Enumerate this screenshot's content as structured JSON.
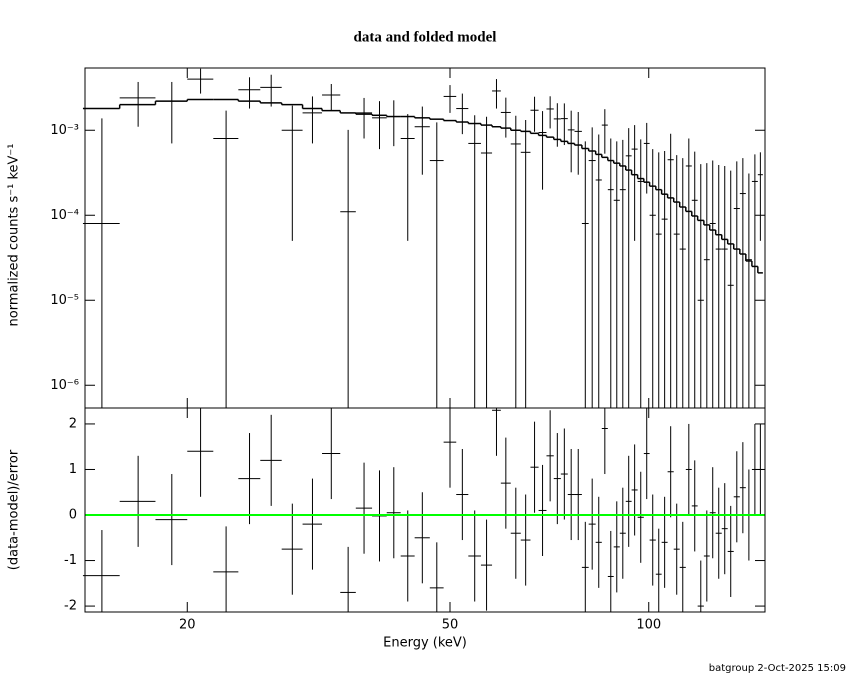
{
  "chart_data": [
    {
      "type": "errorbar",
      "title": "data and folded model",
      "ylabel": "normalized counts s⁻¹ keV⁻¹",
      "log_x": true,
      "log_y": true,
      "xlim": [
        14,
        150
      ],
      "ylim": [
        5.4e-07,
        0.0054
      ],
      "yticks": [
        {
          "value": 1e-06,
          "label": "10⁻⁶"
        },
        {
          "value": 1e-05,
          "label": "10⁻⁵"
        },
        {
          "value": 0.0001,
          "label": "10⁻⁴"
        },
        {
          "value": 0.001,
          "label": "10⁻³"
        }
      ],
      "color": "#000000",
      "model_color": "#000000",
      "x": [
        14.85,
        16.85,
        18.95,
        20.95,
        22.9,
        24.85,
        26.8,
        28.85,
        30.95,
        33.05,
        35.05,
        37.05,
        39.1,
        41.1,
        43.15,
        45.4,
        47.75,
        50,
        52.2,
        54.5,
        56.8,
        58.8,
        60.75,
        62.9,
        65.1,
        67.15,
        69.05,
        70.9,
        72.7,
        74.5,
        76.3,
        78.2,
        80.15,
        82.1,
        84.0,
        85.8,
        87.6,
        89.45,
        91.35,
        93.25,
        95.2,
        97.25,
        99.3,
        101.4,
        103.55,
        105.7,
        107.95,
        110.25,
        112.6,
        115.0,
        117.4,
        119.9,
        122.45,
        125.0,
        127.65,
        130.35,
        133.1,
        135.95,
        138.85,
        141.8,
        144.8,
        147.6
      ],
      "xerr": [
        0.95,
        1.05,
        1.05,
        0.95,
        1.0,
        0.95,
        1.0,
        1.05,
        1.05,
        1.05,
        0.95,
        1.05,
        1.0,
        1.0,
        1.05,
        1.2,
        1.15,
        1.1,
        1.1,
        1.2,
        1.1,
        0.9,
        1.05,
        1.1,
        1.1,
        0.95,
        0.95,
        0.9,
        0.9,
        0.9,
        0.9,
        1.0,
        0.95,
        1.0,
        0.9,
        0.9,
        0.9,
        0.95,
        0.95,
        0.95,
        1.0,
        1.05,
        1.0,
        1.1,
        1.05,
        1.1,
        1.15,
        1.15,
        1.2,
        1.2,
        1.2,
        1.3,
        1.25,
        1.3,
        1.35,
        1.35,
        1.4,
        1.45,
        1.45,
        1.5,
        1.5,
        1.3
      ],
      "values": [
        8e-05,
        0.0024,
        0.0022,
        0.004,
        0.0008,
        0.003,
        0.0032,
        0.001,
        0.0016,
        0.0026,
        0.00011,
        0.0016,
        0.0014,
        0.00145,
        0.0008,
        0.0011,
        0.00044,
        0.0025,
        0.0018,
        0.0007,
        0.00054,
        0.0029,
        0.00162,
        0.00069,
        0.00055,
        0.00172,
        0.00094,
        0.00178,
        0.00136,
        0.00137,
        0.00101,
        0.00097,
        8e-05,
        0.00044,
        0.00026,
        0.00115,
        0.0002,
        0.00015,
        0.0002,
        0.0005,
        0.0006,
        0.00025,
        0.0007,
        0.0001,
        6e-05,
        9e-05,
        0.00045,
        6e-05,
        4e-05,
        0.00038,
        0.00015,
        1e-05,
        3e-05,
        8e-05,
        4e-05,
        4e-05,
        1.5e-05,
        0.00012,
        0.00018,
        3e-05,
        0.00025,
        0.0003
      ],
      "yerr": [
        0.0013,
        0.0013,
        0.0015,
        0.0013,
        0.0009,
        0.0012,
        0.0013,
        0.00095,
        0.0009,
        0.0009,
        0.0009,
        0.0008,
        0.0008,
        0.0008,
        0.00075,
        0.0008,
        0.0008,
        0.0009,
        0.0009,
        0.0008,
        0.0009,
        0.0011,
        0.0008,
        0.00079,
        0.00077,
        0.00076,
        0.00074,
        0.00073,
        0.00072,
        0.0007,
        0.00069,
        0.00067,
        0.00066,
        0.00064,
        0.00063,
        0.00062,
        0.0006,
        0.00059,
        0.00057,
        0.00056,
        0.00055,
        0.00053,
        0.00052,
        0.0005,
        0.00049,
        0.00048,
        0.00046,
        0.00045,
        0.00043,
        0.00042,
        0.00041,
        0.00039,
        0.00038,
        0.00036,
        0.00035,
        0.00034,
        0.00032,
        0.00031,
        0.00029,
        0.00028,
        0.00027,
        0.00025
      ],
      "model": [
        0.0018,
        0.002,
        0.0022,
        0.0023,
        0.0023,
        0.0022,
        0.0021,
        0.002,
        0.0018,
        0.0017,
        0.0016,
        0.00155,
        0.0015,
        0.00145,
        0.00145,
        0.0014,
        0.00135,
        0.0013,
        0.00125,
        0.0012,
        0.00115,
        0.0011,
        0.00106,
        0.001,
        0.00097,
        0.00092,
        0.00087,
        0.00083,
        0.00078,
        0.00074,
        0.0007,
        0.00067,
        0.00061,
        0.00057,
        0.00052,
        0.00048,
        0.00044,
        0.00041,
        0.00038,
        0.00034,
        0.0003,
        0.00027,
        0.000245,
        0.00022,
        0.0002,
        0.000177,
        0.00016,
        0.000143,
        0.000125,
        0.000111,
        9.8e-05,
        8.7e-05,
        7.7e-05,
        6.7e-05,
        5.9e-05,
        5.2e-05,
        4.6e-05,
        4e-05,
        3.5e-05,
        2.9e-05,
        2.5e-05,
        2.1e-05
      ]
    },
    {
      "type": "residual",
      "ylabel": "(data-model)/error",
      "xlabel": "Energy (keV)",
      "log_x": true,
      "xlim": [
        14,
        150
      ],
      "xticks": [
        20,
        50,
        100
      ],
      "ylim": [
        -2.13,
        2.35
      ],
      "yticks": [
        -2,
        -1,
        0,
        1,
        2
      ],
      "color": "#000000",
      "hline": 0,
      "hline_color": "#00ff00",
      "values": [
        -1.33,
        0.3,
        -0.1,
        1.4,
        -1.25,
        0.8,
        1.2,
        -0.75,
        -0.2,
        1.35,
        -1.7,
        0.15,
        -0.02,
        0.05,
        -0.9,
        -0.5,
        -1.6,
        1.6,
        0.45,
        -0.9,
        -1.1,
        2.3,
        0.7,
        -0.4,
        -0.55,
        1.05,
        0.1,
        1.3,
        0.8,
        0.9,
        0.45,
        0.45,
        -1.15,
        -0.2,
        -0.6,
        1.9,
        -1.35,
        -0.7,
        -0.4,
        0.3,
        0.55,
        -0.05,
        1.35,
        -0.55,
        -1.3,
        -0.6,
        0.95,
        -0.75,
        -1.15,
        1.0,
        0.2,
        -2.0,
        -0.9,
        0.05,
        -0.4,
        -0.3,
        -0.8,
        0.4,
        0.6,
        0.0,
        1.0,
        1.0
      ],
      "yerr": [
        1,
        1,
        1,
        1,
        1,
        1,
        1,
        1,
        1,
        1,
        1,
        1,
        1,
        1,
        1,
        1,
        1,
        1,
        1,
        1,
        1,
        1,
        1,
        1,
        1,
        1,
        1,
        1,
        1,
        1,
        1,
        1,
        1,
        1,
        1,
        1,
        1,
        1,
        1,
        1,
        1,
        1,
        1,
        1,
        1,
        1,
        1,
        1,
        1,
        1,
        1,
        1,
        1,
        1,
        1,
        1,
        1,
        1,
        1,
        1,
        1,
        1
      ]
    }
  ],
  "footer": "batgroup  2-Oct-2025 15:09"
}
